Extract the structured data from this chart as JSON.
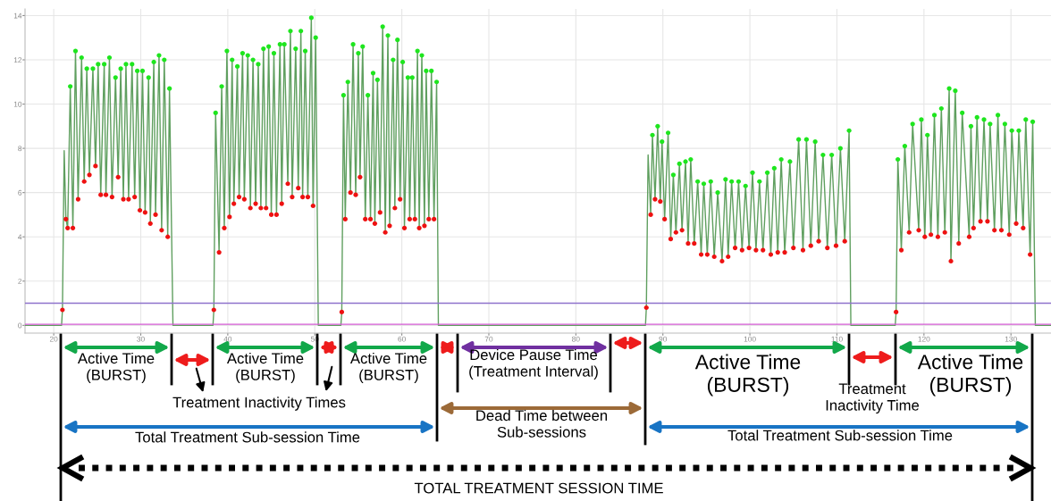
{
  "chart_data": {
    "type": "line",
    "xlim": [
      16.7,
      134.6
    ],
    "ylim": [
      -0.35,
      14.3
    ],
    "xticks": [
      20,
      30,
      40,
      50,
      60,
      70,
      80,
      90,
      100,
      110,
      120,
      130
    ],
    "yticks": [
      0,
      2,
      4,
      6,
      8,
      10,
      12,
      14
    ],
    "grid": true,
    "series": [
      {
        "color": "#5f9f5f",
        "x": [
          16.7,
          20.9,
          21.0,
          21.2,
          21.4,
          21.6,
          21.9,
          22.2,
          22.5,
          22.8,
          23.2,
          23.5,
          23.8,
          24.1,
          24.5,
          24.8,
          25.1,
          25.4,
          25.8,
          26.0,
          26.4,
          26.7,
          27.1,
          27.4,
          27.7,
          28.0,
          28.3,
          28.6,
          29.0,
          29.3,
          29.6,
          29.9,
          30.2,
          30.5,
          30.9,
          31.1,
          31.5,
          31.7,
          32.1,
          32.4,
          32.7,
          33.1,
          33.3,
          33.7,
          38.3,
          38.4,
          38.6,
          39.0,
          39.3,
          39.6,
          39.9,
          40.2,
          40.5,
          40.7,
          41.1,
          41.3,
          41.7,
          41.9,
          42.3,
          42.6,
          42.9,
          43.2,
          43.5,
          43.8,
          44.1,
          44.4,
          44.7,
          45.0,
          45.3,
          45.6,
          46.0,
          46.2,
          46.5,
          46.9,
          47.2,
          47.4,
          47.8,
          48.1,
          48.4,
          48.6,
          48.9,
          49.2,
          49.6,
          49.8,
          50.1,
          50.4,
          53.0,
          53.1,
          53.3,
          53.5,
          53.8,
          54.1,
          54.4,
          54.7,
          55.0,
          55.2,
          55.5,
          55.8,
          56.1,
          56.4,
          56.7,
          56.9,
          57.2,
          57.5,
          57.8,
          58.1,
          58.4,
          58.6,
          59.0,
          59.2,
          59.5,
          59.8,
          60.1,
          60.3,
          60.7,
          60.9,
          61.2,
          61.5,
          61.8,
          62.0,
          62.3,
          62.6,
          62.8,
          63.1,
          63.4,
          63.7,
          64.0,
          64.2,
          88.0,
          88.1,
          88.3,
          88.6,
          88.8,
          89.1,
          89.4,
          89.7,
          89.9,
          90.2,
          90.6,
          90.9,
          91.2,
          91.5,
          91.9,
          92.2,
          92.6,
          92.9,
          93.2,
          93.6,
          94.0,
          94.4,
          94.7,
          95.1,
          95.5,
          95.9,
          96.3,
          96.8,
          97.2,
          97.5,
          97.9,
          98.3,
          98.7,
          99.1,
          99.5,
          99.9,
          100.3,
          100.7,
          101.1,
          101.5,
          102.0,
          102.4,
          102.8,
          103.2,
          103.6,
          104.0,
          104.6,
          105.0,
          105.6,
          106.1,
          106.5,
          107.0,
          107.5,
          107.9,
          108.4,
          108.9,
          109.4,
          109.9,
          110.4,
          110.9,
          111.4,
          111.6,
          116.7,
          116.8,
          117.0,
          117.4,
          117.8,
          118.3,
          118.7,
          119.4,
          119.7,
          120.1,
          120.4,
          120.8,
          121.2,
          121.6,
          122.0,
          122.4,
          122.9,
          123.1,
          123.6,
          124.0,
          124.4,
          125.2,
          125.4,
          125.7,
          126.1,
          126.5,
          126.9,
          127.3,
          127.6,
          128.1,
          128.5,
          128.9,
          129.3,
          129.8,
          130.1,
          130.6,
          130.9,
          131.4,
          131.7,
          132.2,
          132.5,
          132.8,
          134.6
        ],
        "values": [
          0,
          0,
          0.7,
          7.9,
          4.8,
          4.4,
          10.8,
          4.4,
          12.4,
          5.7,
          12.1,
          6.5,
          11.6,
          6.8,
          11.6,
          7.2,
          11.8,
          5.9,
          11.8,
          5.9,
          12.1,
          5.8,
          11.2,
          6.7,
          11.6,
          5.7,
          11.8,
          5.7,
          11.8,
          5.8,
          11.5,
          5.2,
          11.5,
          5.1,
          11.2,
          4.6,
          11.9,
          5.0,
          12.2,
          4.3,
          12.0,
          4.0,
          10.7,
          0,
          0,
          0.7,
          9.6,
          3.3,
          10.8,
          4.4,
          12.4,
          4.9,
          12.0,
          5.5,
          11.7,
          5.8,
          12.3,
          5.7,
          12.2,
          5.3,
          12.0,
          5.5,
          11.8,
          5.3,
          12.5,
          5.3,
          12.6,
          5.0,
          12.3,
          5.0,
          12.7,
          5.5,
          12.7,
          6.4,
          13.3,
          5.8,
          12.5,
          6.2,
          13.3,
          5.8,
          12.4,
          5.8,
          13.9,
          5.4,
          13.0,
          0,
          0,
          0.6,
          10.4,
          4.8,
          11.0,
          6.0,
          12.7,
          5.9,
          12.3,
          6.7,
          12.6,
          4.8,
          10.4,
          4.8,
          11.4,
          4.6,
          11.1,
          5.1,
          13.5,
          4.2,
          13.1,
          4.5,
          12.0,
          5.3,
          12.9,
          5.7,
          11.9,
          4.4,
          11.2,
          4.8,
          11.2,
          4.8,
          12.4,
          4.4,
          12.2,
          4.5,
          11.5,
          4.8,
          11.5,
          4.8,
          11.0,
          0,
          0,
          0.8,
          7.7,
          5.0,
          8.6,
          5.7,
          9.0,
          5.6,
          8.3,
          4.8,
          8.7,
          3.9,
          6.8,
          4.2,
          7.3,
          4.3,
          7.4,
          3.7,
          7.5,
          3.7,
          6.5,
          3.2,
          6.4,
          3.2,
          6.5,
          3.1,
          6.0,
          2.9,
          6.6,
          3.1,
          6.5,
          3.5,
          6.5,
          3.4,
          6.3,
          3.5,
          6.9,
          3.4,
          6.5,
          3.4,
          6.9,
          3.2,
          7.1,
          3.3,
          7.5,
          3.3,
          7.4,
          3.5,
          8.4,
          3.4,
          8.4,
          3.6,
          8.3,
          3.8,
          7.7,
          3.5,
          7.7,
          3.6,
          8.0,
          3.8,
          8.8,
          0,
          0,
          0.6,
          7.5,
          3.4,
          8.1,
          4.2,
          9.1,
          4.3,
          9.3,
          4.0,
          8.6,
          4.1,
          9.5,
          4.0,
          9.8,
          4.2,
          10.7,
          2.9,
          10.6,
          3.7,
          9.6,
          4.0,
          9.0,
          4.4,
          9.4,
          4.7,
          9.3,
          4.7,
          9.1,
          4.3,
          9.5,
          4.3,
          9.1,
          4.1,
          8.8,
          4.6,
          8.8,
          4.4,
          9.3,
          3.2,
          9.2,
          0,
          0
        ]
      },
      {
        "type": "scatter",
        "marker": "circle",
        "color": "#1ee61e",
        "x": [
          21.9,
          22.5,
          23.2,
          23.8,
          24.5,
          25.1,
          25.8,
          26.4,
          27.1,
          27.7,
          28.3,
          29.0,
          29.6,
          30.2,
          30.9,
          31.5,
          32.1,
          32.7,
          33.3,
          38.6,
          39.3,
          39.9,
          40.5,
          41.1,
          41.7,
          42.3,
          42.9,
          43.5,
          44.1,
          44.7,
          45.3,
          46.0,
          46.5,
          47.2,
          47.8,
          48.4,
          48.9,
          49.6,
          50.1,
          53.3,
          53.8,
          54.4,
          55.0,
          55.5,
          56.1,
          56.7,
          57.2,
          57.8,
          58.4,
          59.0,
          59.5,
          60.1,
          60.7,
          61.2,
          61.8,
          62.3,
          62.8,
          63.4,
          64.0,
          88.8,
          89.4,
          89.9,
          90.6,
          91.2,
          91.9,
          92.6,
          93.2,
          94.0,
          94.7,
          95.5,
          96.3,
          97.2,
          97.9,
          98.7,
          99.5,
          100.3,
          101.1,
          102.0,
          102.8,
          103.6,
          104.6,
          105.6,
          106.5,
          107.5,
          108.4,
          109.4,
          110.4,
          111.4,
          117.0,
          117.8,
          118.7,
          119.7,
          120.4,
          121.2,
          122.0,
          122.9,
          123.6,
          124.4,
          125.4,
          126.1,
          126.9,
          127.6,
          128.5,
          129.3,
          130.1,
          130.9,
          131.7,
          132.5
        ],
        "values": [
          10.8,
          12.4,
          12.1,
          11.6,
          11.6,
          11.8,
          11.8,
          12.1,
          11.2,
          11.6,
          11.8,
          11.8,
          11.5,
          11.5,
          11.2,
          11.9,
          12.2,
          12.0,
          10.7,
          9.6,
          10.8,
          12.4,
          12.0,
          11.7,
          12.3,
          12.2,
          12.0,
          11.8,
          12.5,
          12.6,
          12.3,
          12.7,
          12.7,
          13.3,
          12.5,
          13.3,
          12.4,
          13.9,
          13.0,
          10.4,
          11.0,
          12.7,
          12.3,
          12.6,
          10.4,
          11.4,
          11.1,
          13.5,
          13.1,
          12.0,
          12.9,
          11.9,
          11.2,
          11.2,
          12.4,
          12.2,
          11.5,
          11.5,
          11.0,
          8.6,
          9.0,
          8.3,
          8.7,
          6.8,
          7.3,
          7.4,
          7.5,
          6.5,
          6.4,
          6.5,
          6.0,
          6.6,
          6.5,
          6.5,
          6.3,
          6.9,
          6.5,
          6.9,
          7.1,
          7.5,
          7.4,
          8.4,
          8.4,
          8.3,
          7.7,
          7.7,
          8.0,
          8.8,
          7.5,
          8.1,
          9.1,
          9.3,
          8.6,
          9.5,
          9.8,
          10.7,
          10.6,
          9.6,
          9.0,
          9.4,
          9.3,
          9.1,
          9.5,
          9.1,
          8.8,
          8.8,
          9.3,
          9.2
        ]
      },
      {
        "type": "scatter",
        "marker": "circle",
        "color": "#ee1111",
        "x": [
          21.0,
          21.4,
          21.6,
          22.2,
          22.8,
          23.5,
          24.1,
          24.8,
          25.4,
          26.0,
          26.7,
          27.4,
          28.0,
          28.6,
          29.3,
          29.9,
          30.5,
          31.1,
          31.7,
          32.4,
          33.1,
          38.4,
          39.0,
          39.6,
          40.2,
          40.7,
          41.3,
          41.9,
          42.6,
          43.2,
          43.8,
          44.4,
          45.0,
          45.6,
          46.2,
          46.9,
          47.4,
          48.1,
          48.6,
          49.2,
          49.8,
          53.1,
          53.5,
          54.1,
          54.7,
          55.2,
          55.8,
          56.4,
          56.9,
          57.5,
          58.1,
          58.6,
          59.2,
          59.8,
          60.3,
          60.9,
          61.5,
          62.0,
          62.6,
          63.1,
          63.7,
          88.1,
          88.6,
          89.1,
          89.7,
          90.2,
          90.9,
          91.5,
          92.2,
          92.9,
          93.6,
          94.4,
          95.1,
          95.9,
          96.8,
          97.5,
          98.3,
          99.1,
          99.9,
          100.7,
          101.5,
          102.4,
          103.2,
          104.0,
          105.0,
          106.1,
          107.0,
          107.9,
          108.9,
          109.9,
          110.9,
          116.8,
          117.4,
          118.3,
          119.4,
          120.1,
          120.8,
          121.6,
          122.4,
          123.1,
          124.0,
          125.2,
          125.7,
          126.5,
          127.3,
          128.1,
          128.9,
          129.8,
          130.6,
          131.4,
          132.2
        ],
        "values": [
          0.7,
          4.8,
          4.4,
          4.4,
          5.7,
          6.5,
          6.8,
          7.2,
          5.9,
          5.9,
          5.8,
          6.7,
          5.7,
          5.7,
          5.8,
          5.2,
          5.1,
          4.6,
          5.0,
          4.3,
          4.0,
          0.7,
          3.3,
          4.4,
          4.9,
          5.5,
          5.8,
          5.7,
          5.3,
          5.5,
          5.3,
          5.3,
          5.0,
          5.0,
          5.5,
          6.4,
          5.8,
          6.2,
          5.8,
          5.8,
          5.4,
          0.6,
          4.8,
          6.0,
          5.9,
          6.7,
          4.8,
          4.8,
          4.6,
          5.1,
          4.2,
          4.5,
          5.3,
          5.7,
          4.4,
          4.8,
          4.8,
          4.4,
          4.5,
          4.8,
          4.8,
          0.8,
          5.0,
          5.7,
          5.6,
          4.8,
          3.9,
          4.2,
          4.3,
          3.7,
          3.7,
          3.2,
          3.2,
          3.1,
          2.9,
          3.1,
          3.5,
          3.4,
          3.5,
          3.4,
          3.4,
          3.2,
          3.3,
          3.3,
          3.5,
          3.4,
          3.6,
          3.8,
          3.5,
          3.6,
          3.8,
          0.6,
          3.4,
          4.2,
          4.3,
          4.0,
          4.1,
          4.0,
          4.2,
          2.9,
          3.7,
          4.0,
          4.4,
          4.7,
          4.7,
          4.3,
          4.3,
          4.1,
          4.6,
          4.4,
          3.2
        ]
      },
      {
        "type": "line",
        "color": "#8e72cc",
        "x": [
          16.7,
          134.6
        ],
        "values": [
          1.0,
          1.0
        ]
      },
      {
        "type": "line",
        "color": "#d35ad3",
        "x": [
          16.7,
          134.6
        ],
        "values": [
          0.05,
          0.05
        ]
      }
    ],
    "annotations": [
      "Active Time\n(BURST)",
      "Active Time\n(BURST)",
      "Active Time\n(BURST)",
      "Device Pause Time\n(Treatment Interval)",
      "Active Time\n(BURST)",
      "Treatment\nInactivity Time",
      "Active Time\n(BURST)",
      "Treatment Inactivity Times",
      "Dead Time between\nSub-sessions",
      "Total Treatment Sub-session Time",
      "Total Treatment Sub-session Time",
      "TOTAL TREATMENT SESSION TIME"
    ]
  }
}
